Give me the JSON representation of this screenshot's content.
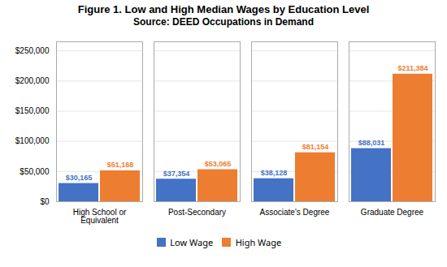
{
  "chart_data": {
    "type": "bar",
    "title": "Figure 1. Low and High Median Wages by Education Level",
    "subtitle": "Source: DEED Occupations in Demand",
    "categories": [
      "High School or\nEquivalent",
      "Post-Secondary",
      "Associate's Degree",
      "Graduate Degree"
    ],
    "series": [
      {
        "name": "Low Wage",
        "color": "#4472C4",
        "values": [
          30165,
          37354,
          38128,
          88031
        ],
        "value_labels": [
          "$30,165",
          "$37,354",
          "$38,128",
          "$88,031"
        ]
      },
      {
        "name": "High Wage",
        "color": "#ED7D31",
        "values": [
          51168,
          53065,
          81154,
          211384
        ],
        "value_labels": [
          "$51,168",
          "$53,065",
          "$81,154",
          "$211,384"
        ]
      }
    ],
    "ylim": [
      0,
      265000
    ],
    "yticks": [
      {
        "value": 0,
        "label": "$0"
      },
      {
        "value": 50000,
        "label": "$50,000"
      },
      {
        "value": 100000,
        "label": "$100,000"
      },
      {
        "value": 150000,
        "label": "$150,000"
      },
      {
        "value": 200000,
        "label": "$200,000"
      },
      {
        "value": 250000,
        "label": "$250,000"
      }
    ],
    "grid": true,
    "data_labels": true,
    "legend": "bottom"
  }
}
